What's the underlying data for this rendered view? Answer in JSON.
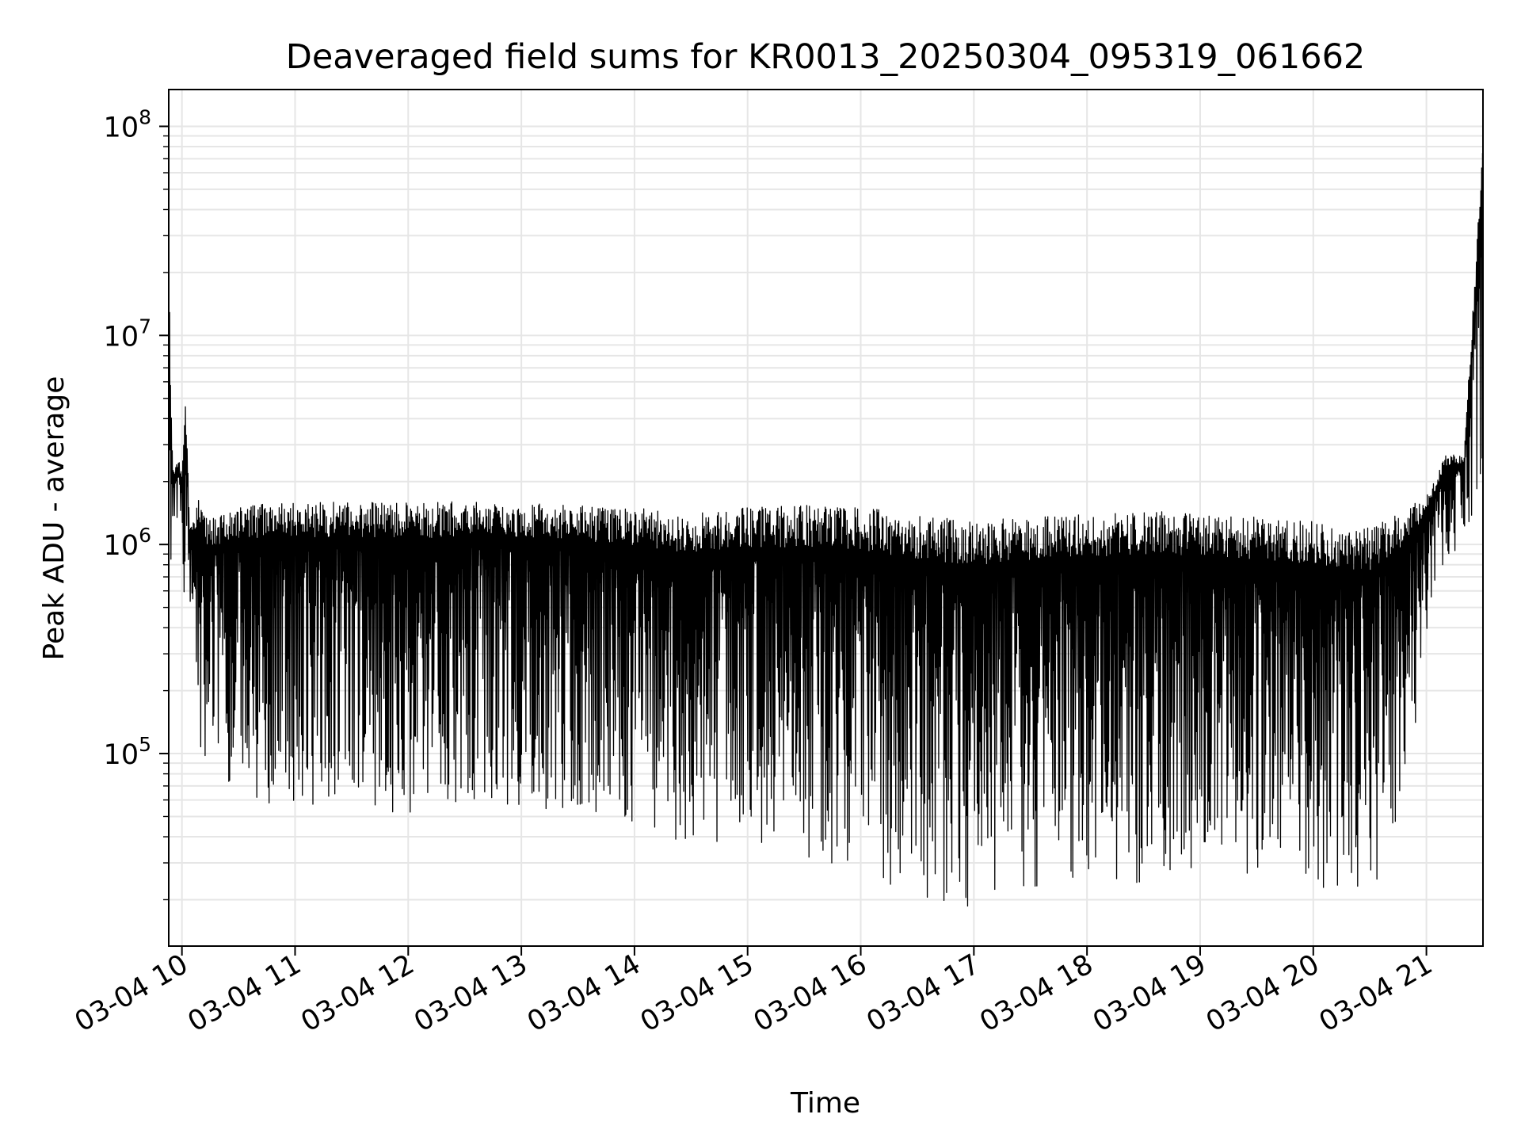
{
  "chart_data": {
    "type": "line",
    "title": "Deaveraged field sums for KR0013_20250304_095319_061662",
    "xlabel": "Time",
    "ylabel": "Peak ADU - average",
    "y_scale": "log",
    "ylim": [
      12000,
      150000000
    ],
    "xlim": [
      "03-04 09:53",
      "03-04 21:30"
    ],
    "x_ticks": [
      "03-04 10",
      "03-04 11",
      "03-04 12",
      "03-04 13",
      "03-04 14",
      "03-04 15",
      "03-04 16",
      "03-04 17",
      "03-04 18",
      "03-04 19",
      "03-04 20",
      "03-04 21"
    ],
    "y_ticks": [
      {
        "value": 100000,
        "base": "10",
        "exp": "5"
      },
      {
        "value": 1000000,
        "base": "10",
        "exp": "6"
      },
      {
        "value": 10000000,
        "base": "10",
        "exp": "7"
      },
      {
        "value": 100000000,
        "base": "10",
        "exp": "8"
      }
    ],
    "grid": true,
    "line_color": "#000000",
    "series": [
      {
        "x": [
          "03-04 09:53",
          "03-04 09:54",
          "03-04 09:55",
          "03-04 09:56",
          "03-04 09:58",
          "03-04 10:00",
          "03-04 10:02",
          "03-04 10:04",
          "03-04 10:05",
          "03-04 10:08",
          "03-04 10:10",
          "03-04 10:14",
          "03-04 10:20",
          "03-04 10:30",
          "03-04 10:45",
          "03-04 11:00",
          "03-04 11:30",
          "03-04 12:00",
          "03-04 12:30",
          "03-04 13:00",
          "03-04 13:30",
          "03-04 14:00",
          "03-04 14:30",
          "03-04 15:00",
          "03-04 15:30",
          "03-04 16:00",
          "03-04 16:30",
          "03-04 17:00",
          "03-04 17:30",
          "03-04 18:00",
          "03-04 18:30",
          "03-04 19:00",
          "03-04 19:30",
          "03-04 20:00",
          "03-04 20:30",
          "03-04 20:50",
          "03-04 21:00",
          "03-04 21:10",
          "03-04 21:20",
          "03-04 21:30"
        ],
        "max": [
          39000000,
          6000000,
          2500000,
          2300000,
          2600000,
          2200000,
          5600000,
          1300000,
          1200000,
          1600000,
          1700000,
          1300000,
          1400000,
          1500000,
          1600000,
          1600000,
          1600000,
          1600000,
          1600000,
          1600000,
          1550000,
          1500000,
          1400000,
          1500000,
          1550000,
          1500000,
          1400000,
          1300000,
          1350000,
          1400000,
          1450000,
          1400000,
          1350000,
          1300000,
          1200000,
          1500000,
          1700000,
          2700000,
          2700000,
          100000000
        ],
        "min": [
          320000,
          500000,
          1100000,
          1200000,
          1100000,
          1000000,
          220000,
          600000,
          400000,
          180000,
          100000,
          95000,
          80000,
          65000,
          55000,
          58000,
          55000,
          50000,
          60000,
          55000,
          50000,
          45000,
          35000,
          36000,
          30000,
          27000,
          21000,
          17500,
          23000,
          25000,
          24000,
          28000,
          26000,
          22000,
          20000,
          55000,
          380000,
          650000,
          1200000,
          1400000
        ]
      }
    ]
  }
}
